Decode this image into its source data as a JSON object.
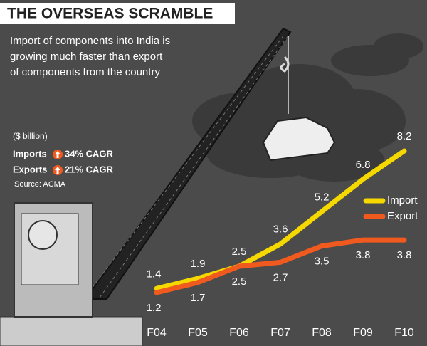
{
  "chart_data": {
    "type": "line",
    "title": "THE OVERSEAS SCRAMBLE",
    "subtitle": [
      "Import of components into India is",
      "growing much faster than export",
      "of components from the country"
    ],
    "unit_note": "($ billion)",
    "notes": [
      {
        "label": "Imports",
        "text": "34% CAGR"
      },
      {
        "label": "Exports",
        "text": "21% CAGR"
      }
    ],
    "source": "Source: ACMA",
    "categories": [
      "F04",
      "F05",
      "F06",
      "F07",
      "F08",
      "F09",
      "F10"
    ],
    "series": [
      {
        "name": "Import",
        "color": "#f5d800",
        "values": [
          1.4,
          1.9,
          2.5,
          3.6,
          5.2,
          6.8,
          8.2
        ]
      },
      {
        "name": "Export",
        "color": "#f05a1e",
        "values": [
          1.2,
          1.7,
          2.5,
          2.7,
          3.5,
          3.8,
          3.8
        ]
      }
    ]
  }
}
